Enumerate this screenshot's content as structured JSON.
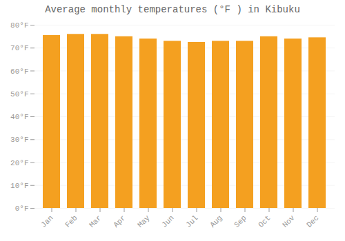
{
  "chart_data": {
    "type": "bar",
    "title": "Average monthly temperatures (°F ) in Kibuku",
    "categories": [
      "Jan",
      "Feb",
      "Mar",
      "Apr",
      "May",
      "Jun",
      "Jul",
      "Aug",
      "Sep",
      "Oct",
      "Nov",
      "Dec"
    ],
    "values": [
      75.5,
      76.0,
      76.0,
      75.0,
      74.0,
      73.0,
      72.5,
      73.0,
      73.0,
      75.0,
      74.0,
      74.5
    ],
    "color": "#F4A020",
    "ylim": [
      0,
      80
    ],
    "yticks": [
      {
        "value": 0,
        "label": "0°F"
      },
      {
        "value": 10,
        "label": "10°F"
      },
      {
        "value": 20,
        "label": "20°F"
      },
      {
        "value": 30,
        "label": "30°F"
      },
      {
        "value": 40,
        "label": "40°F"
      },
      {
        "value": 50,
        "label": "50°F"
      },
      {
        "value": 60,
        "label": "60°F"
      },
      {
        "value": 70,
        "label": "70°F"
      },
      {
        "value": 80,
        "label": "80°F"
      }
    ],
    "grid": true
  }
}
